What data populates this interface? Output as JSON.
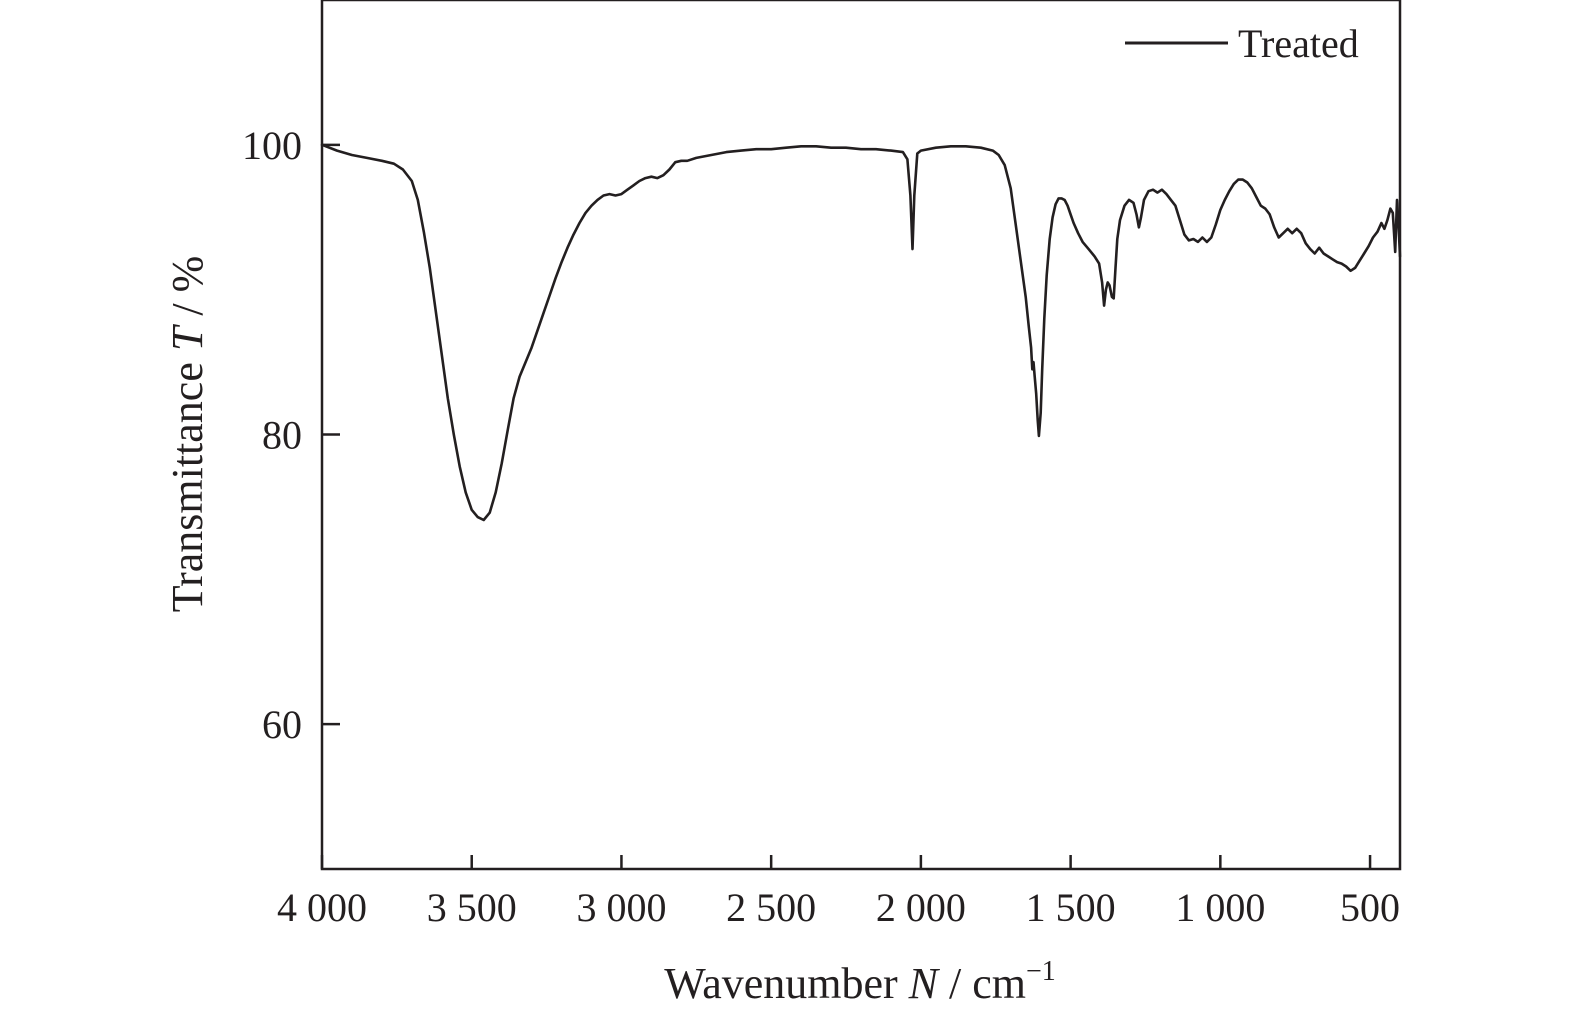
{
  "chart_data": {
    "type": "line",
    "x_axis": {
      "label_prefix": "Wavenumber ",
      "label_var": "N",
      "label_unit": " / cm",
      "label_sup": "−1",
      "range": [
        4000,
        400
      ],
      "reversed": true,
      "ticks": [
        {
          "value": 4000,
          "label": "4 000"
        },
        {
          "value": 3500,
          "label": "3 500"
        },
        {
          "value": 3000,
          "label": "3 000"
        },
        {
          "value": 2500,
          "label": "2 500"
        },
        {
          "value": 2000,
          "label": "2 000"
        },
        {
          "value": 1500,
          "label": "1 500"
        },
        {
          "value": 1000,
          "label": "1 000"
        },
        {
          "value": 500,
          "label": "500"
        }
      ]
    },
    "y_axis": {
      "label_prefix": "Transmittance ",
      "label_var": "T",
      "label_unit": " / %",
      "range": [
        50,
        110
      ],
      "ticks": [
        {
          "value": 100,
          "label": "100"
        },
        {
          "value": 80,
          "label": "80"
        },
        {
          "value": 60,
          "label": "60"
        }
      ]
    },
    "grid": false,
    "legend_position": "top-right",
    "series": [
      {
        "name": "Treated",
        "color": "#231f20",
        "points": [
          [
            4000,
            100.0
          ],
          [
            3950,
            99.6
          ],
          [
            3900,
            99.3
          ],
          [
            3850,
            99.1
          ],
          [
            3800,
            98.9
          ],
          [
            3760,
            98.7
          ],
          [
            3730,
            98.3
          ],
          [
            3700,
            97.5
          ],
          [
            3680,
            96.2
          ],
          [
            3660,
            94.0
          ],
          [
            3640,
            91.5
          ],
          [
            3620,
            88.5
          ],
          [
            3600,
            85.5
          ],
          [
            3580,
            82.5
          ],
          [
            3560,
            80.0
          ],
          [
            3540,
            77.8
          ],
          [
            3520,
            76.0
          ],
          [
            3500,
            74.8
          ],
          [
            3480,
            74.3
          ],
          [
            3460,
            74.1
          ],
          [
            3440,
            74.6
          ],
          [
            3420,
            76.0
          ],
          [
            3400,
            78.0
          ],
          [
            3380,
            80.3
          ],
          [
            3360,
            82.5
          ],
          [
            3340,
            84.0
          ],
          [
            3320,
            85.0
          ],
          [
            3300,
            86.0
          ],
          [
            3280,
            87.2
          ],
          [
            3260,
            88.4
          ],
          [
            3240,
            89.6
          ],
          [
            3220,
            90.8
          ],
          [
            3200,
            91.9
          ],
          [
            3180,
            92.9
          ],
          [
            3160,
            93.8
          ],
          [
            3140,
            94.6
          ],
          [
            3120,
            95.3
          ],
          [
            3100,
            95.8
          ],
          [
            3080,
            96.2
          ],
          [
            3060,
            96.5
          ],
          [
            3040,
            96.6
          ],
          [
            3020,
            96.5
          ],
          [
            3000,
            96.6
          ],
          [
            2980,
            96.9
          ],
          [
            2960,
            97.2
          ],
          [
            2940,
            97.5
          ],
          [
            2920,
            97.7
          ],
          [
            2900,
            97.8
          ],
          [
            2880,
            97.7
          ],
          [
            2860,
            97.9
          ],
          [
            2840,
            98.3
          ],
          [
            2820,
            98.8
          ],
          [
            2800,
            98.9
          ],
          [
            2780,
            98.9
          ],
          [
            2750,
            99.1
          ],
          [
            2700,
            99.3
          ],
          [
            2650,
            99.5
          ],
          [
            2600,
            99.6
          ],
          [
            2550,
            99.7
          ],
          [
            2500,
            99.7
          ],
          [
            2450,
            99.8
          ],
          [
            2400,
            99.9
          ],
          [
            2350,
            99.9
          ],
          [
            2300,
            99.8
          ],
          [
            2250,
            99.8
          ],
          [
            2200,
            99.7
          ],
          [
            2150,
            99.7
          ],
          [
            2100,
            99.6
          ],
          [
            2060,
            99.5
          ],
          [
            2045,
            99.0
          ],
          [
            2035,
            96.5
          ],
          [
            2028,
            92.8
          ],
          [
            2022,
            96.5
          ],
          [
            2012,
            99.4
          ],
          [
            2000,
            99.6
          ],
          [
            1950,
            99.8
          ],
          [
            1900,
            99.9
          ],
          [
            1850,
            99.9
          ],
          [
            1800,
            99.8
          ],
          [
            1760,
            99.6
          ],
          [
            1740,
            99.3
          ],
          [
            1720,
            98.6
          ],
          [
            1700,
            97.0
          ],
          [
            1690,
            95.5
          ],
          [
            1680,
            94.0
          ],
          [
            1670,
            92.5
          ],
          [
            1660,
            91.0
          ],
          [
            1650,
            89.5
          ],
          [
            1640,
            87.5
          ],
          [
            1632,
            86.0
          ],
          [
            1628,
            84.5
          ],
          [
            1624,
            85.0
          ],
          [
            1620,
            84.0
          ],
          [
            1615,
            82.8
          ],
          [
            1610,
            81.0
          ],
          [
            1606,
            79.9
          ],
          [
            1600,
            81.5
          ],
          [
            1595,
            84.5
          ],
          [
            1588,
            88.0
          ],
          [
            1580,
            91.0
          ],
          [
            1570,
            93.5
          ],
          [
            1560,
            95.0
          ],
          [
            1550,
            95.9
          ],
          [
            1540,
            96.3
          ],
          [
            1530,
            96.3
          ],
          [
            1520,
            96.2
          ],
          [
            1510,
            95.8
          ],
          [
            1500,
            95.2
          ],
          [
            1490,
            94.6
          ],
          [
            1475,
            93.9
          ],
          [
            1460,
            93.3
          ],
          [
            1440,
            92.8
          ],
          [
            1420,
            92.3
          ],
          [
            1405,
            91.8
          ],
          [
            1395,
            90.5
          ],
          [
            1388,
            88.9
          ],
          [
            1382,
            90.0
          ],
          [
            1376,
            90.5
          ],
          [
            1370,
            90.3
          ],
          [
            1362,
            89.5
          ],
          [
            1356,
            89.4
          ],
          [
            1350,
            91.5
          ],
          [
            1344,
            93.5
          ],
          [
            1335,
            94.8
          ],
          [
            1320,
            95.8
          ],
          [
            1305,
            96.2
          ],
          [
            1290,
            96.0
          ],
          [
            1280,
            95.2
          ],
          [
            1272,
            94.3
          ],
          [
            1265,
            95.0
          ],
          [
            1255,
            96.2
          ],
          [
            1240,
            96.8
          ],
          [
            1225,
            96.9
          ],
          [
            1210,
            96.7
          ],
          [
            1195,
            96.9
          ],
          [
            1180,
            96.6
          ],
          [
            1165,
            96.2
          ],
          [
            1150,
            95.8
          ],
          [
            1135,
            94.8
          ],
          [
            1120,
            93.8
          ],
          [
            1105,
            93.4
          ],
          [
            1090,
            93.5
          ],
          [
            1075,
            93.3
          ],
          [
            1060,
            93.6
          ],
          [
            1045,
            93.3
          ],
          [
            1030,
            93.6
          ],
          [
            1015,
            94.5
          ],
          [
            1000,
            95.5
          ],
          [
            985,
            96.2
          ],
          [
            970,
            96.8
          ],
          [
            955,
            97.3
          ],
          [
            940,
            97.6
          ],
          [
            925,
            97.6
          ],
          [
            910,
            97.4
          ],
          [
            895,
            97.0
          ],
          [
            880,
            96.4
          ],
          [
            865,
            95.8
          ],
          [
            850,
            95.6
          ],
          [
            835,
            95.2
          ],
          [
            820,
            94.3
          ],
          [
            805,
            93.6
          ],
          [
            790,
            93.9
          ],
          [
            775,
            94.2
          ],
          [
            760,
            93.9
          ],
          [
            745,
            94.2
          ],
          [
            730,
            93.9
          ],
          [
            715,
            93.2
          ],
          [
            700,
            92.8
          ],
          [
            685,
            92.5
          ],
          [
            670,
            92.9
          ],
          [
            655,
            92.5
          ],
          [
            640,
            92.3
          ],
          [
            625,
            92.1
          ],
          [
            610,
            91.9
          ],
          [
            595,
            91.8
          ],
          [
            580,
            91.6
          ],
          [
            565,
            91.3
          ],
          [
            550,
            91.5
          ],
          [
            535,
            92.0
          ],
          [
            520,
            92.5
          ],
          [
            505,
            93.0
          ],
          [
            490,
            93.6
          ],
          [
            475,
            94.0
          ],
          [
            462,
            94.6
          ],
          [
            452,
            94.2
          ],
          [
            442,
            94.8
          ],
          [
            432,
            95.6
          ],
          [
            424,
            95.3
          ],
          [
            416,
            92.6
          ],
          [
            410,
            96.2
          ],
          [
            405,
            94.5
          ],
          [
            400,
            92.3
          ]
        ]
      }
    ]
  }
}
